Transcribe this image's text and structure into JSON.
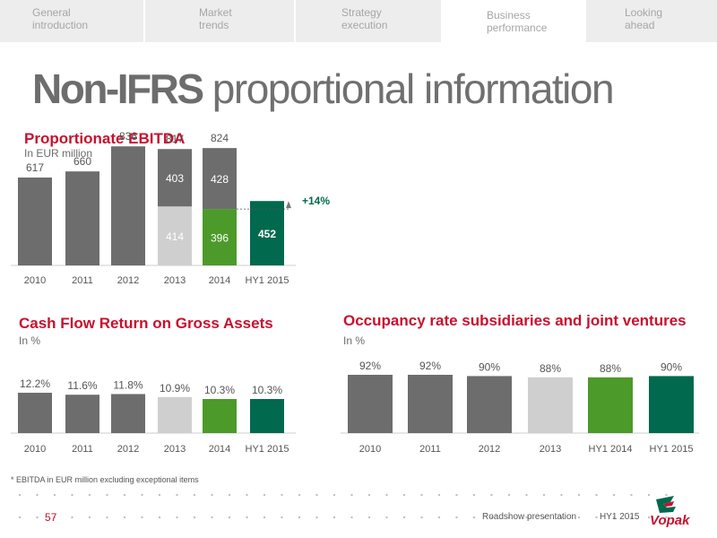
{
  "tabs": [
    {
      "line1": "General",
      "line2": "introduction"
    },
    {
      "line1": "Market",
      "line2": "trends"
    },
    {
      "line1": "Strategy",
      "line2": "execution"
    },
    {
      "line1": "Business",
      "line2": "performance"
    },
    {
      "line1": "Looking",
      "line2": "ahead"
    }
  ],
  "active_tab": 3,
  "title": {
    "bold": "Non-IFRS",
    "light": " proportional information"
  },
  "sections": {
    "ebitda": {
      "title": "Proportionate EBITDA",
      "subtitle": "In EUR million"
    },
    "cfrogs": {
      "title": "Cash Flow Return on Gross Assets",
      "subtitle": "In %"
    },
    "occupancy": {
      "title": "Occupancy rate subsidiaries and joint ventures",
      "subtitle": "In %"
    }
  },
  "colors": {
    "accent": "#c8102e",
    "dark_grey": "#6d6d6d",
    "light_grey": "#cfcfcf",
    "green": "#4c9a2a",
    "dark_green": "#00694e"
  },
  "chart_data": [
    {
      "type": "bar",
      "stacked": true,
      "categories": [
        "2010",
        "2011",
        "2012",
        "2013",
        "2014",
        "HY1 2015"
      ],
      "totals": [
        617,
        660,
        836,
        817,
        824,
        null
      ],
      "series": [
        {
          "values": [
            617,
            660,
            836,
            414,
            396,
            452
          ]
        },
        {
          "values": [
            null,
            null,
            null,
            403,
            428,
            null
          ]
        }
      ],
      "annotation": "+14%"
    },
    {
      "type": "bar",
      "categories": [
        "2010",
        "2011",
        "2012",
        "2013",
        "2014",
        "HY1 2015"
      ],
      "values": [
        12.2,
        11.6,
        11.8,
        10.9,
        10.3,
        10.3
      ],
      "labels": [
        "12.2%",
        "11.6%",
        "11.8%",
        "10.9%",
        "10.3%",
        "10.3%"
      ]
    },
    {
      "type": "bar",
      "categories": [
        "2010",
        "2011",
        "2012",
        "2013",
        "HY1 2014",
        "HY1 2015"
      ],
      "values": [
        92,
        92,
        90,
        88,
        88,
        90
      ],
      "labels": [
        "92%",
        "92%",
        "90%",
        "88%",
        "88%",
        "90%"
      ]
    }
  ],
  "footnote": "* EBITDA in EUR million excluding exceptional items",
  "footer": {
    "page": "57",
    "presentation": "Roadshow presentation",
    "period": "HY1 2015"
  },
  "logo": {
    "text": "Vopak"
  }
}
